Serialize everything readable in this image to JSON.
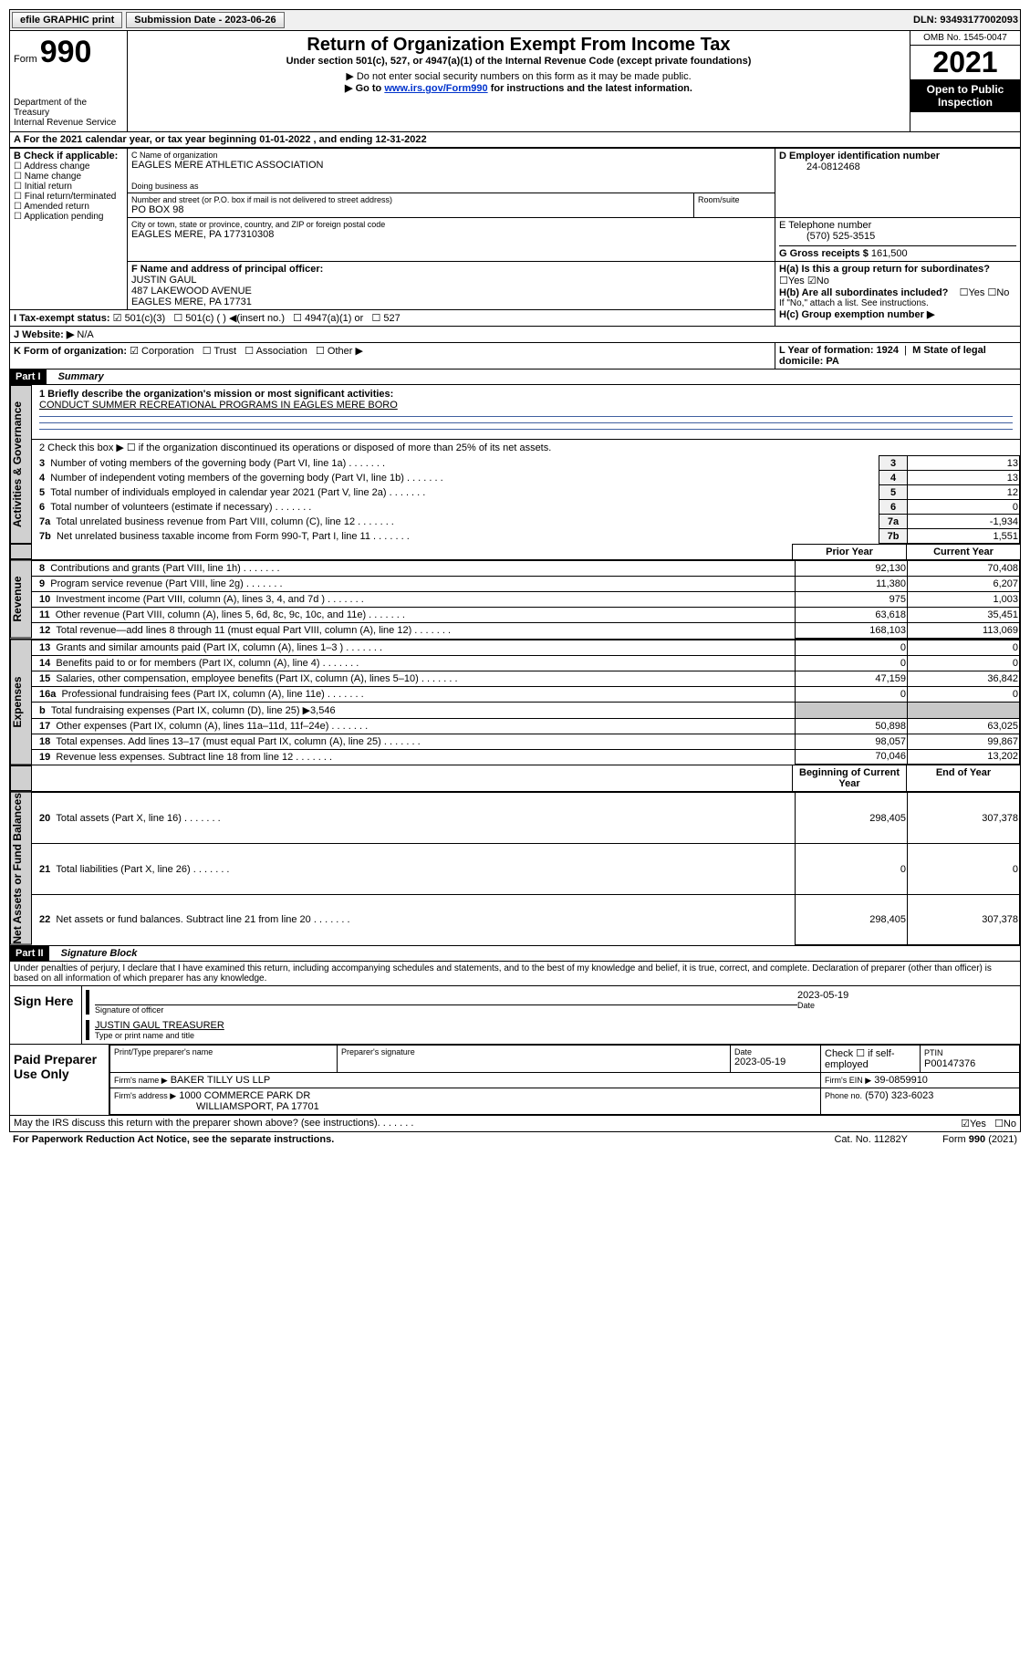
{
  "top_bar": {
    "efile": "efile GRAPHIC print",
    "submission_label": "Submission Date - 2023-06-26",
    "dln": "DLN: 93493177002093"
  },
  "header": {
    "form_word": "Form",
    "form_num": "990",
    "dept": "Department of the Treasury",
    "irs": "Internal Revenue Service",
    "title": "Return of Organization Exempt From Income Tax",
    "subtitle": "Under section 501(c), 527, or 4947(a)(1) of the Internal Revenue Code (except private foundations)",
    "note1": "▶ Do not enter social security numbers on this form as it may be made public.",
    "note2_pre": "▶ Go to ",
    "note2_link": "www.irs.gov/Form990",
    "note2_post": " for instructions and the latest information.",
    "omb": "OMB No. 1545-0047",
    "year": "2021",
    "inspection": "Open to Public Inspection"
  },
  "sectionA": {
    "tax_year": "For the 2021 calendar year, or tax year beginning 01-01-2022   , and ending 12-31-2022",
    "b_label": "B Check if applicable:",
    "b_opts": [
      "Address change",
      "Name change",
      "Initial return",
      "Final return/terminated",
      "Amended return",
      "Application pending"
    ],
    "c_label": "C Name of organization",
    "org_name": "EAGLES MERE ATHLETIC ASSOCIATION",
    "dba_label": "Doing business as",
    "addr_label": "Number and street (or P.O. box if mail is not delivered to street address)",
    "room_label": "Room/suite",
    "po": "PO BOX 98",
    "city_label": "City or town, state or province, country, and ZIP or foreign postal code",
    "city": "EAGLES MERE, PA  177310308",
    "d_label": "D Employer identification number",
    "ein": "24-0812468",
    "e_label": "E Telephone number",
    "phone": "(570) 525-3515",
    "g_label": "G Gross receipts $",
    "gross": "161,500",
    "f_label": "F Name and address of principal officer:",
    "officer_name": "JUSTIN GAUL",
    "officer_addr1": "487 LAKEWOOD AVENUE",
    "officer_addr2": "EAGLES MERE, PA  17731",
    "ha_label": "H(a)  Is this a group return for subordinates?",
    "hb_label": "H(b)  Are all subordinates included?",
    "hb_note": "If \"No,\" attach a list. See instructions.",
    "hc_label": "H(c)  Group exemption number ▶",
    "i_label": "I   Tax-exempt status:",
    "i_501c3": "501(c)(3)",
    "i_501c": "501(c) (  ) ◀(insert no.)",
    "i_4947": "4947(a)(1) or",
    "i_527": "527",
    "j_label": "J   Website: ▶",
    "website": "N/A",
    "k_label": "K Form of organization:",
    "k_opts": [
      "Corporation",
      "Trust",
      "Association",
      "Other ▶"
    ],
    "l_label": "L Year of formation: 1924",
    "m_label": "M State of legal domicile: PA"
  },
  "part1": {
    "header": "Part I",
    "title": "Summary",
    "line1_label": "1  Briefly describe the organization's mission or most significant activities:",
    "mission": "CONDUCT SUMMER RECREATIONAL PROGRAMS IN EAGLES MERE BORO",
    "line2": "2   Check this box ▶ ☐  if the organization discontinued its operations or disposed of more than 25% of its net assets.",
    "vert_gov": "Activities & Governance",
    "vert_rev": "Revenue",
    "vert_exp": "Expenses",
    "vert_net": "Net Assets or Fund Balances",
    "col_prior": "Prior Year",
    "col_current": "Current Year",
    "col_begin": "Beginning of Current Year",
    "col_end": "End of Year",
    "rows_a": [
      {
        "n": "3",
        "t": "Number of voting members of the governing body (Part VI, line 1a)",
        "v": "13"
      },
      {
        "n": "4",
        "t": "Number of independent voting members of the governing body (Part VI, line 1b)",
        "v": "13"
      },
      {
        "n": "5",
        "t": "Total number of individuals employed in calendar year 2021 (Part V, line 2a)",
        "v": "12"
      },
      {
        "n": "6",
        "t": "Total number of volunteers (estimate if necessary)",
        "v": "0"
      },
      {
        "n": "7a",
        "t": "Total unrelated business revenue from Part VIII, column (C), line 12",
        "v": "-1,934"
      },
      {
        "n": "7b",
        "t": "Net unrelated business taxable income from Form 990-T, Part I, line 11",
        "v": "1,551"
      }
    ],
    "rows_b": [
      {
        "n": "8",
        "t": "Contributions and grants (Part VIII, line 1h)",
        "p": "92,130",
        "c": "70,408"
      },
      {
        "n": "9",
        "t": "Program service revenue (Part VIII, line 2g)",
        "p": "11,380",
        "c": "6,207"
      },
      {
        "n": "10",
        "t": "Investment income (Part VIII, column (A), lines 3, 4, and 7d )",
        "p": "975",
        "c": "1,003"
      },
      {
        "n": "11",
        "t": "Other revenue (Part VIII, column (A), lines 5, 6d, 8c, 9c, 10c, and 11e)",
        "p": "63,618",
        "c": "35,451"
      },
      {
        "n": "12",
        "t": "Total revenue—add lines 8 through 11 (must equal Part VIII, column (A), line 12)",
        "p": "168,103",
        "c": "113,069"
      }
    ],
    "rows_c": [
      {
        "n": "13",
        "t": "Grants and similar amounts paid (Part IX, column (A), lines 1–3 )",
        "p": "0",
        "c": "0"
      },
      {
        "n": "14",
        "t": "Benefits paid to or for members (Part IX, column (A), line 4)",
        "p": "0",
        "c": "0"
      },
      {
        "n": "15",
        "t": "Salaries, other compensation, employee benefits (Part IX, column (A), lines 5–10)",
        "p": "47,159",
        "c": "36,842"
      },
      {
        "n": "16a",
        "t": "Professional fundraising fees (Part IX, column (A), line 11e)",
        "p": "0",
        "c": "0"
      },
      {
        "n": "b",
        "t": "Total fundraising expenses (Part IX, column (D), line 25) ▶3,546",
        "p": "",
        "c": "",
        "shaded": true
      },
      {
        "n": "17",
        "t": "Other expenses (Part IX, column (A), lines 11a–11d, 11f–24e)",
        "p": "50,898",
        "c": "63,025"
      },
      {
        "n": "18",
        "t": "Total expenses. Add lines 13–17 (must equal Part IX, column (A), line 25)",
        "p": "98,057",
        "c": "99,867"
      },
      {
        "n": "19",
        "t": "Revenue less expenses. Subtract line 18 from line 12",
        "p": "70,046",
        "c": "13,202"
      }
    ],
    "rows_d": [
      {
        "n": "20",
        "t": "Total assets (Part X, line 16)",
        "p": "298,405",
        "c": "307,378"
      },
      {
        "n": "21",
        "t": "Total liabilities (Part X, line 26)",
        "p": "0",
        "c": "0"
      },
      {
        "n": "22",
        "t": "Net assets or fund balances. Subtract line 21 from line 20",
        "p": "298,405",
        "c": "307,378"
      }
    ]
  },
  "part2": {
    "header": "Part II",
    "title": "Signature Block",
    "penalty": "Under penalties of perjury, I declare that I have examined this return, including accompanying schedules and statements, and to the best of my knowledge and belief, it is true, correct, and complete. Declaration of preparer (other than officer) is based on all information of which preparer has any knowledge.",
    "sign_here": "Sign Here",
    "sig_officer": "Signature of officer",
    "date": "Date",
    "date_val": "2023-05-19",
    "name_title": "JUSTIN GAUL  TREASURER",
    "name_label": "Type or print name and title",
    "paid_prep": "Paid Preparer Use Only",
    "pt_name": "Print/Type preparer's name",
    "pt_sig": "Preparer's signature",
    "pt_date": "Date",
    "pt_date_val": "2023-05-19",
    "pt_check": "Check ☐ if self-employed",
    "ptin_label": "PTIN",
    "ptin": "P00147376",
    "firm_name_label": "Firm's name    ▶",
    "firm_name": "BAKER TILLY US LLP",
    "firm_ein_label": "Firm's EIN ▶",
    "firm_ein": "39-0859910",
    "firm_addr_label": "Firm's address ▶",
    "firm_addr1": "1000 COMMERCE PARK DR",
    "firm_addr2": "WILLIAMSPORT, PA  17701",
    "firm_phone_label": "Phone no.",
    "firm_phone": "(570) 323-6023",
    "discuss": "May the IRS discuss this return with the preparer shown above? (see instructions)",
    "paperwork": "For Paperwork Reduction Act Notice, see the separate instructions.",
    "catno": "Cat. No. 11282Y",
    "form_foot": "Form 990 (2021)"
  }
}
